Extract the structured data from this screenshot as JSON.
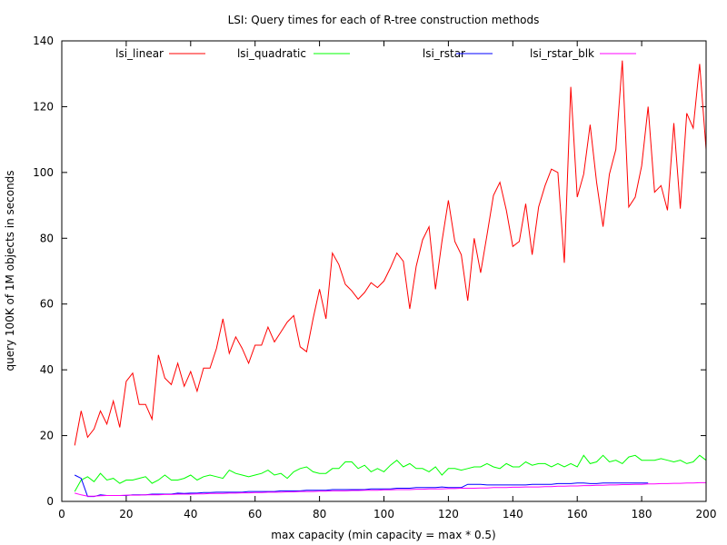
{
  "chart_data": {
    "type": "line",
    "title": "LSI: Query times for each of R-tree construction methods",
    "xlabel": "max capacity (min capacity = max * 0.5)",
    "ylabel": "query 100K of 1M objects in seconds",
    "xlim": [
      0,
      200
    ],
    "ylim": [
      0,
      140
    ],
    "xticks": [
      0,
      20,
      40,
      60,
      80,
      100,
      120,
      140,
      160,
      180,
      200
    ],
    "yticks": [
      0,
      20,
      40,
      60,
      80,
      100,
      120,
      140
    ],
    "grid": false,
    "legend_position": "top",
    "series": [
      {
        "name": "lsi_linear",
        "color": "#ff0000",
        "x": [
          4,
          6,
          8,
          10,
          12,
          14,
          16,
          18,
          20,
          22,
          24,
          26,
          28,
          30,
          32,
          34,
          36,
          38,
          40,
          42,
          44,
          46,
          48,
          50,
          52,
          54,
          56,
          58,
          60,
          62,
          64,
          66,
          68,
          70,
          72,
          74,
          76,
          78,
          80,
          82,
          84,
          86,
          88,
          90,
          92,
          94,
          96,
          98,
          100,
          102,
          104,
          106,
          108,
          110,
          112,
          114,
          116,
          118,
          120,
          122,
          124,
          126,
          128,
          130,
          132,
          134,
          136,
          138,
          140,
          142,
          144,
          146,
          148,
          150,
          152,
          154,
          156,
          158,
          160,
          162,
          164,
          166,
          168,
          170,
          172,
          174,
          176,
          178,
          180,
          182,
          184,
          186,
          188,
          190,
          192,
          194,
          196,
          198,
          200
        ],
        "values": [
          17,
          27.5,
          19.5,
          22,
          27.5,
          23.5,
          30.5,
          22.5,
          36.5,
          39,
          29.5,
          29.5,
          25,
          44.5,
          37.5,
          35.5,
          42,
          35,
          39.5,
          33.5,
          40.5,
          40.5,
          46.5,
          55.5,
          45,
          50,
          46.5,
          42,
          47.5,
          47.5,
          53,
          48.5,
          51.5,
          54.5,
          56.5,
          47,
          45.5,
          55.5,
          64.5,
          55.5,
          75.5,
          72,
          66,
          64,
          61.5,
          63.5,
          66.5,
          65,
          67,
          71,
          75.5,
          73,
          58.5,
          71.5,
          79.5,
          83.5,
          64.5,
          79,
          91.5,
          79,
          75,
          61,
          80,
          69.5,
          81,
          93,
          97,
          88.5,
          77.5,
          79,
          90.5,
          75,
          89.5,
          96,
          101,
          100,
          72.5,
          126,
          92.5,
          99.5,
          114.5,
          97,
          83.5,
          99.5,
          107,
          134,
          89.5,
          92.5,
          102,
          120,
          94,
          96,
          88.5,
          115,
          89,
          118,
          113.5,
          133,
          107
        ]
      },
      {
        "name": "lsi_quadratic",
        "color": "#00ff00",
        "x": [
          4,
          6,
          8,
          10,
          12,
          14,
          16,
          18,
          20,
          22,
          24,
          26,
          28,
          30,
          32,
          34,
          36,
          38,
          40,
          42,
          44,
          46,
          48,
          50,
          52,
          54,
          56,
          58,
          60,
          62,
          64,
          66,
          68,
          70,
          72,
          74,
          76,
          78,
          80,
          82,
          84,
          86,
          88,
          90,
          92,
          94,
          96,
          98,
          100,
          102,
          104,
          106,
          108,
          110,
          112,
          114,
          116,
          118,
          120,
          122,
          124,
          126,
          128,
          130,
          132,
          134,
          136,
          138,
          140,
          142,
          144,
          146,
          148,
          150,
          152,
          154,
          156,
          158,
          160,
          162,
          164,
          166,
          168,
          170,
          172,
          174,
          176,
          178,
          180,
          182,
          184,
          186,
          188,
          190,
          192,
          194,
          196,
          198,
          200
        ],
        "values": [
          3,
          6.5,
          7.5,
          6,
          8.5,
          6.5,
          7,
          5.5,
          6.5,
          6.5,
          7,
          7.5,
          5.5,
          6.5,
          8,
          6.5,
          6.5,
          7,
          8,
          6.5,
          7.5,
          8,
          7.5,
          7,
          9.5,
          8.5,
          8,
          7.5,
          8,
          8.5,
          9.5,
          8,
          8.5,
          7,
          9,
          10,
          10.5,
          9,
          8.5,
          8.5,
          10,
          10,
          12,
          12,
          10,
          11,
          9,
          10,
          9,
          11,
          12.5,
          10.5,
          11.5,
          10,
          10,
          9,
          10.5,
          8,
          10,
          10,
          9.5,
          10,
          10.5,
          10.5,
          11.5,
          10.5,
          10,
          11.5,
          10.5,
          10.5,
          12,
          11,
          11.5,
          11.5,
          10.5,
          11.5,
          10.5,
          11.5,
          10.5,
          14,
          11.5,
          12,
          14,
          12,
          12.5,
          11.5,
          13.5,
          14,
          12.5,
          12.5,
          12.5,
          13,
          12.5,
          12,
          12.5,
          11.5,
          12,
          14,
          12.5
        ]
      },
      {
        "name": "lsi_rstar",
        "color": "#0000ff",
        "x": [
          4,
          6,
          8,
          10,
          12,
          14,
          16,
          18,
          20,
          22,
          24,
          26,
          28,
          30,
          32,
          34,
          36,
          38,
          40,
          42,
          44,
          46,
          48,
          50,
          52,
          54,
          56,
          58,
          60,
          62,
          64,
          66,
          68,
          70,
          72,
          74,
          76,
          78,
          80,
          82,
          84,
          86,
          88,
          90,
          92,
          94,
          96,
          98,
          100,
          102,
          104,
          106,
          108,
          110,
          112,
          114,
          116,
          118,
          120,
          122,
          124,
          126,
          128,
          130,
          132,
          134,
          136,
          138,
          140,
          142,
          144,
          146,
          148,
          150,
          152,
          154,
          156,
          158,
          160,
          162,
          164,
          166,
          168,
          170,
          172,
          174,
          176,
          178,
          180,
          182
        ],
        "values": [
          8,
          7,
          1.5,
          1.5,
          2,
          1.8,
          1.8,
          1.8,
          1.8,
          2,
          2,
          2,
          2.2,
          2.2,
          2.2,
          2.2,
          2.5,
          2.4,
          2.5,
          2.5,
          2.7,
          2.7,
          2.8,
          2.8,
          2.8,
          2.8,
          2.8,
          3,
          3,
          3,
          3,
          3,
          3.2,
          3.2,
          3.2,
          3.2,
          3.4,
          3.4,
          3.4,
          3.4,
          3.6,
          3.6,
          3.6,
          3.6,
          3.6,
          3.6,
          3.8,
          3.8,
          3.8,
          3.8,
          4,
          4,
          4,
          4.2,
          4.2,
          4.2,
          4.2,
          4.4,
          4.2,
          4.2,
          4.2,
          5.2,
          5.2,
          5.2,
          5,
          5,
          5,
          5,
          5,
          5,
          5,
          5.2,
          5.2,
          5.2,
          5.2,
          5.4,
          5.4,
          5.4,
          5.6,
          5.6,
          5.4,
          5.4,
          5.6,
          5.6,
          5.6,
          5.6,
          5.6,
          5.6,
          5.6,
          5.6
        ]
      },
      {
        "name": "lsi_rstar_blk",
        "color": "#ff00ff",
        "x": [
          4,
          6,
          8,
          10,
          12,
          14,
          16,
          18,
          20,
          22,
          24,
          26,
          28,
          30,
          32,
          34,
          36,
          38,
          40,
          42,
          44,
          46,
          48,
          50,
          52,
          54,
          56,
          58,
          60,
          62,
          64,
          66,
          68,
          70,
          72,
          74,
          76,
          78,
          80,
          82,
          84,
          86,
          88,
          90,
          92,
          94,
          96,
          98,
          100,
          102,
          104,
          106,
          108,
          110,
          112,
          114,
          116,
          118,
          120,
          122,
          124,
          126,
          128,
          130,
          132,
          134,
          136,
          138,
          140,
          142,
          144,
          146,
          148,
          150,
          152,
          154,
          156,
          158,
          160,
          162,
          164,
          166,
          168,
          170,
          172,
          174,
          176,
          178,
          180,
          182,
          184,
          186,
          188,
          190,
          192,
          194,
          196,
          198,
          200
        ],
        "values": [
          2.5,
          2,
          1.6,
          1.6,
          1.7,
          1.8,
          1.8,
          1.8,
          1.9,
          1.9,
          1.9,
          2,
          2,
          2,
          2.1,
          2.1,
          2.2,
          2.2,
          2.2,
          2.3,
          2.3,
          2.4,
          2.4,
          2.4,
          2.5,
          2.5,
          2.6,
          2.6,
          2.7,
          2.7,
          2.8,
          2.8,
          2.8,
          2.9,
          2.9,
          3,
          3,
          3,
          3.1,
          3.1,
          3.2,
          3.2,
          3.2,
          3.3,
          3.3,
          3.4,
          3.4,
          3.4,
          3.5,
          3.5,
          3.6,
          3.6,
          3.6,
          3.7,
          3.7,
          3.8,
          3.8,
          3.8,
          3.9,
          3.9,
          4,
          4,
          4,
          4.1,
          4.1,
          4.2,
          4.2,
          4.2,
          4.3,
          4.3,
          4.4,
          4.4,
          4.4,
          4.5,
          4.5,
          4.6,
          4.6,
          4.7,
          4.7,
          4.8,
          4.8,
          4.9,
          4.9,
          5,
          5,
          5.1,
          5.1,
          5.2,
          5.2,
          5.3,
          5.3,
          5.4,
          5.4,
          5.5,
          5.5,
          5.6,
          5.6,
          5.7,
          5.7
        ]
      }
    ]
  }
}
